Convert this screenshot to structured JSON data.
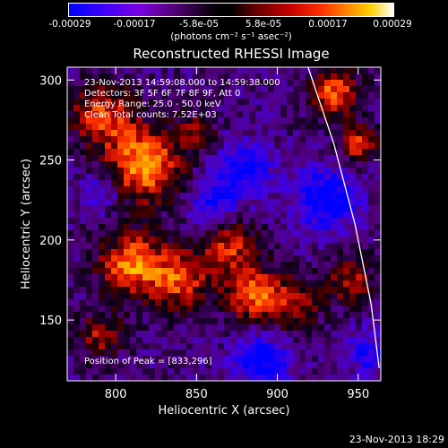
{
  "colorbar": {
    "ticks": [
      "-0.00029",
      "-0.00017",
      "-5.8e-05",
      "5.8e-05",
      "0.00017",
      "0.00029"
    ],
    "units": "(photons cm⁻² s⁻¹ asec⁻²)"
  },
  "annotations": {
    "line1": "23-Nov-2013 14:59:08.000 to 14:59:38.000",
    "line2": "Detectors: 3F 5F 6F 7F 8F 9F, Att 0",
    "line3": "Energy Range: 25.0 - 50.0 keV",
    "line4": "Clean     Total counts: 7.52E+03",
    "peak": "Position of Peak = [833,296]"
  },
  "timestamp": "23-Nov-2013 18:29",
  "chart_data": {
    "type": "heatmap",
    "title": "Reconstructed RHESSI Image",
    "xlabel": "Heliocentric X (arcsec)",
    "ylabel": "Heliocentric Y (arcsec)",
    "xlim": [
      770,
      964
    ],
    "ylim": [
      112,
      308
    ],
    "xticks": [
      800,
      850,
      900,
      950
    ],
    "yticks": [
      150,
      200,
      250,
      300
    ],
    "clim": [
      -0.00029,
      0.00029
    ],
    "peak_position": [
      833,
      296
    ],
    "sources": [
      {
        "x": 818,
        "y": 247,
        "amp": 0.0003,
        "sigma": 16
      },
      {
        "x": 792,
        "y": 278,
        "amp": 0.00022,
        "sigma": 14
      },
      {
        "x": 810,
        "y": 185,
        "amp": 0.00028,
        "sigma": 14
      },
      {
        "x": 840,
        "y": 175,
        "amp": 0.00022,
        "sigma": 13
      },
      {
        "x": 870,
        "y": 195,
        "amp": 0.0002,
        "sigma": 12
      },
      {
        "x": 885,
        "y": 165,
        "amp": 0.00024,
        "sigma": 12
      },
      {
        "x": 910,
        "y": 160,
        "amp": 0.00016,
        "sigma": 12
      },
      {
        "x": 935,
        "y": 292,
        "amp": 0.00026,
        "sigma": 10
      },
      {
        "x": 950,
        "y": 260,
        "amp": 0.00022,
        "sigma": 8
      },
      {
        "x": 945,
        "y": 175,
        "amp": 0.00018,
        "sigma": 10
      },
      {
        "x": 790,
        "y": 140,
        "amp": 0.00016,
        "sigma": 10
      },
      {
        "x": 850,
        "y": 268,
        "amp": 0.00012,
        "sigma": 9
      },
      {
        "x": 880,
        "y": 245,
        "amp": -0.0002,
        "sigma": 12
      },
      {
        "x": 890,
        "y": 125,
        "amp": -0.00022,
        "sigma": 12
      },
      {
        "x": 930,
        "y": 225,
        "amp": -0.00022,
        "sigma": 14
      },
      {
        "x": 860,
        "y": 225,
        "amp": -0.00016,
        "sigma": 11
      },
      {
        "x": 790,
        "y": 230,
        "amp": -0.00012,
        "sigma": 9
      },
      {
        "x": 955,
        "y": 130,
        "amp": -0.00016,
        "sigma": 9
      }
    ],
    "limb_curve": [
      [
        919,
        308
      ],
      [
        935,
        260
      ],
      [
        948,
        210
      ],
      [
        958,
        160
      ],
      [
        963,
        120
      ]
    ],
    "grid": false
  }
}
